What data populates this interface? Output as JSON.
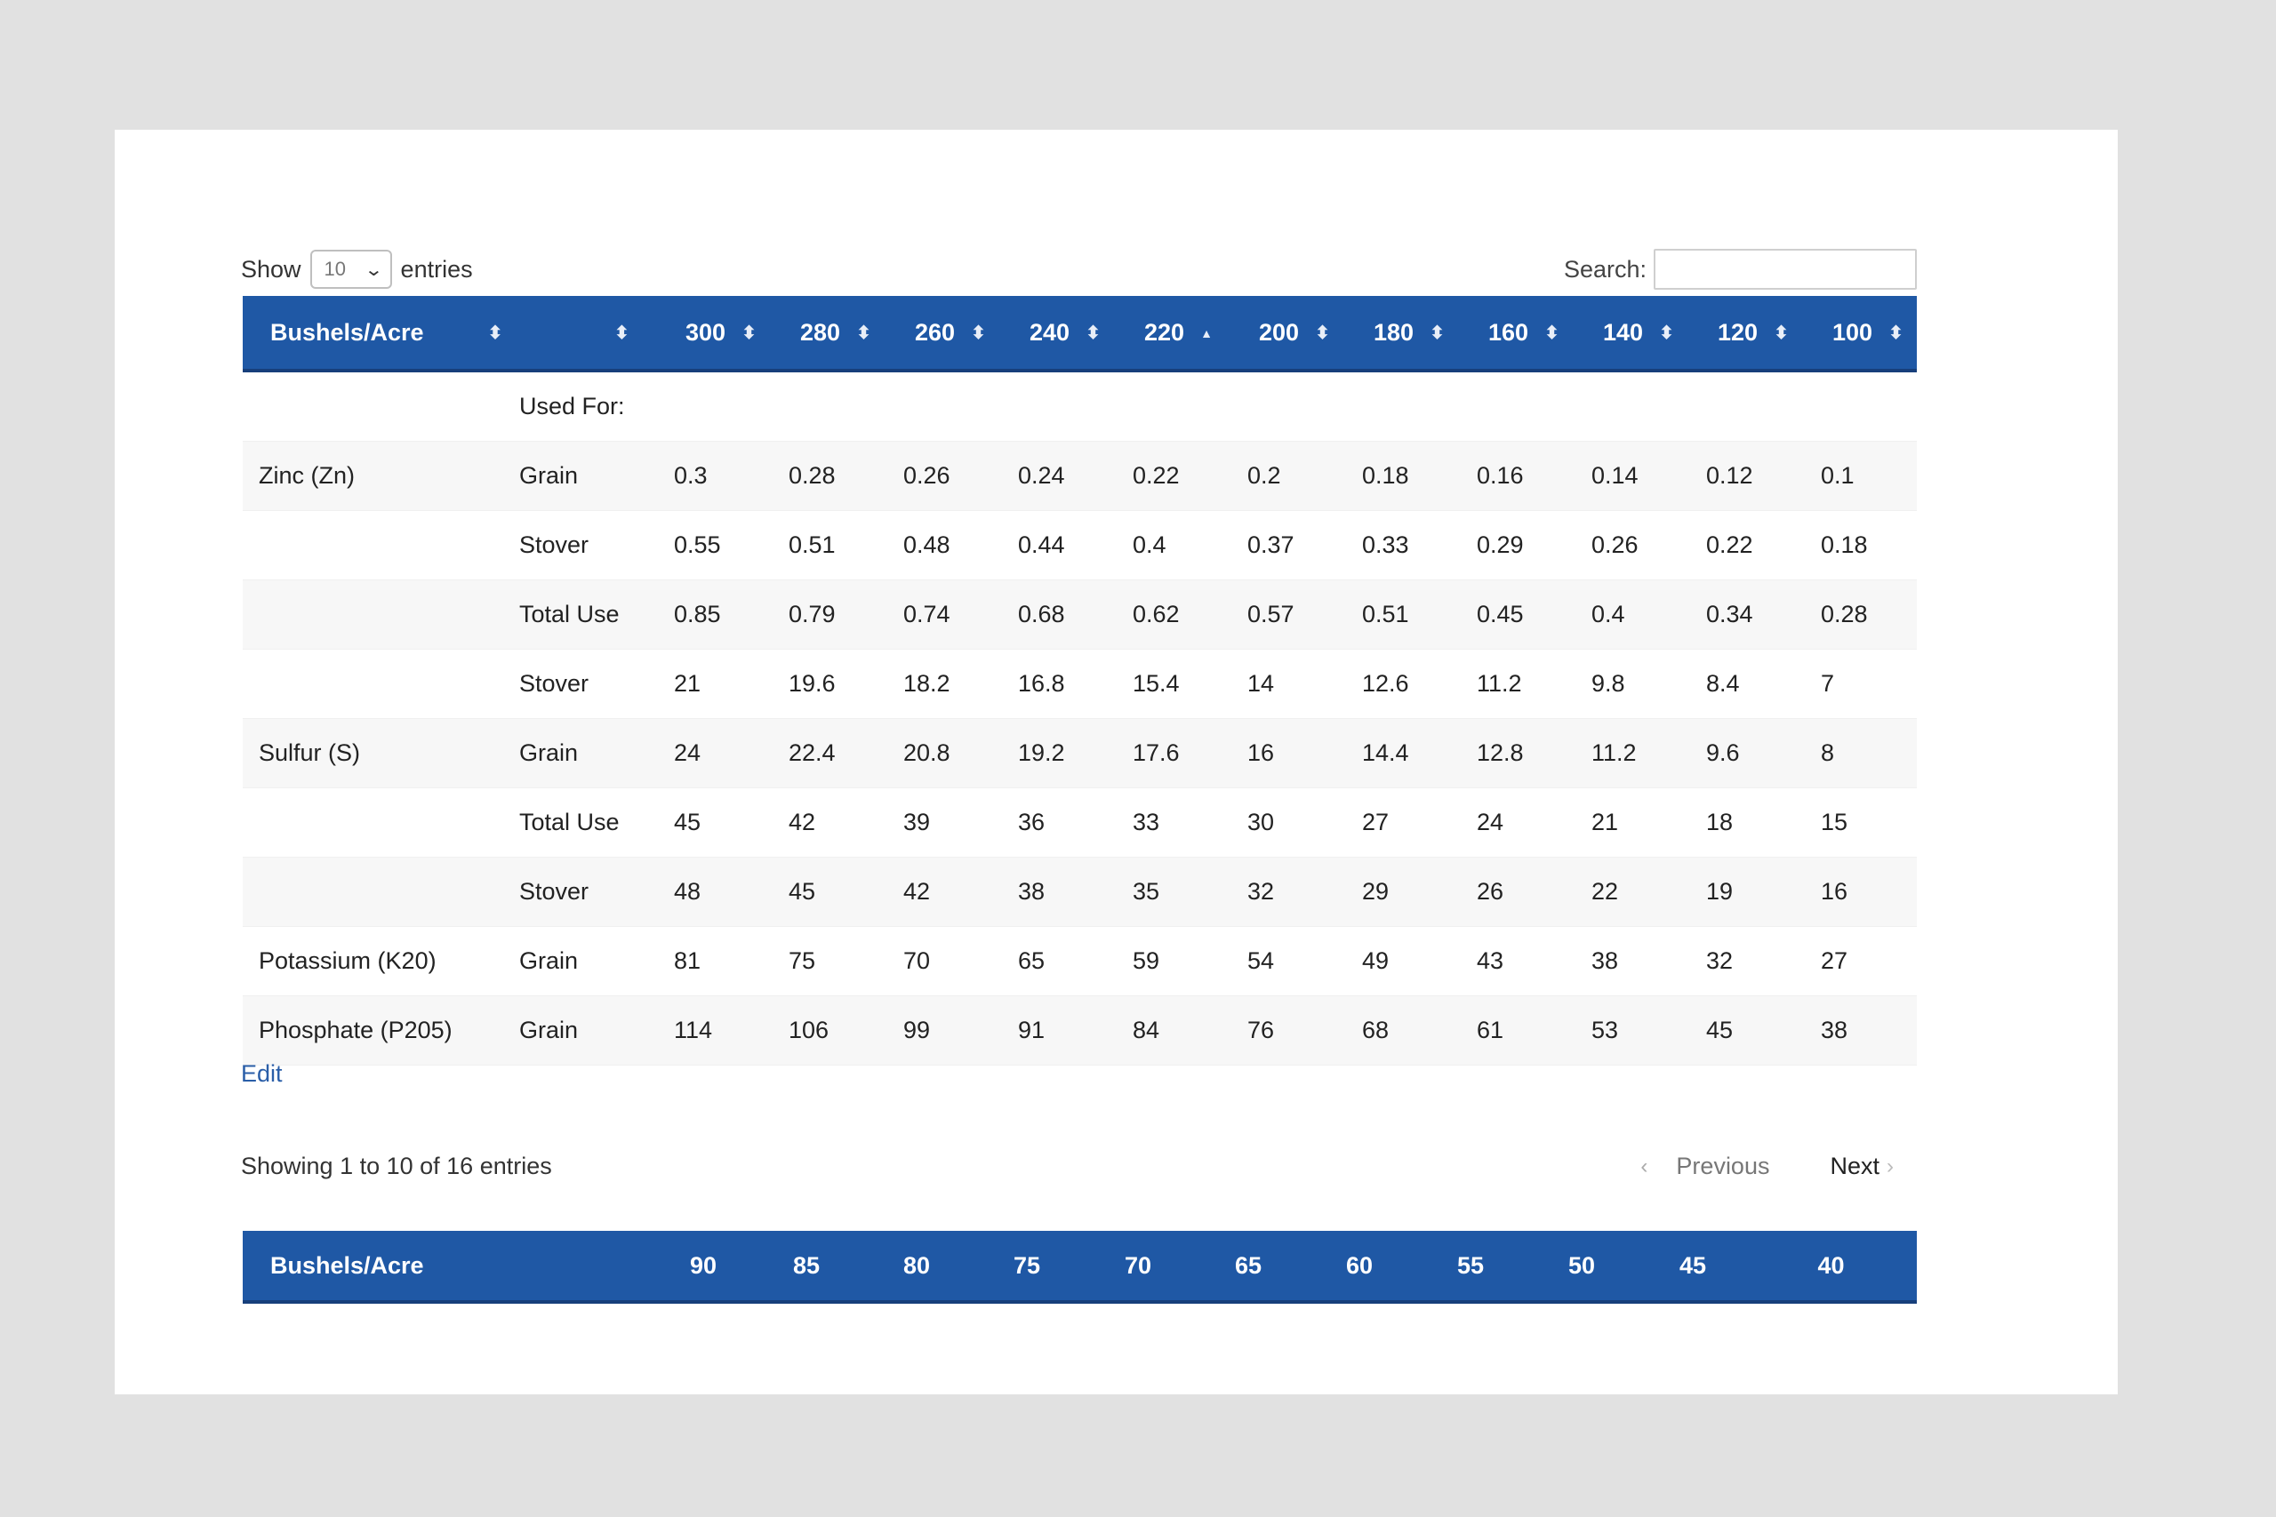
{
  "length_control": {
    "show_label": "Show",
    "selected": "10",
    "entries_label": "entries"
  },
  "search": {
    "label": "Search:",
    "value": "",
    "placeholder": ""
  },
  "colors": {
    "header_bg": "#1f58a5",
    "link": "#2a5ea8",
    "stripe": "#f7f7f7",
    "page_bg": "#e1e1e1"
  },
  "table1": {
    "headers": [
      "Bushels/Acre",
      "",
      "300",
      "280",
      "260",
      "240",
      "220",
      "200",
      "180",
      "160",
      "140",
      "120",
      "100"
    ],
    "sorted_column": "220",
    "rows": [
      {
        "nutrient": "",
        "used": "Used For:",
        "values": [
          "",
          "",
          "",
          "",
          "",
          "",
          "",
          "",
          "",
          "",
          ""
        ]
      },
      {
        "nutrient": "Zinc (Zn)",
        "used": "Grain",
        "values": [
          "0.3",
          "0.28",
          "0.26",
          "0.24",
          "0.22",
          "0.2",
          "0.18",
          "0.16",
          "0.14",
          "0.12",
          "0.1"
        ]
      },
      {
        "nutrient": "",
        "used": "Stover",
        "values": [
          "0.55",
          "0.51",
          "0.48",
          "0.44",
          "0.4",
          "0.37",
          "0.33",
          "0.29",
          "0.26",
          "0.22",
          "0.18"
        ]
      },
      {
        "nutrient": "",
        "used": "Total Use",
        "values": [
          "0.85",
          "0.79",
          "0.74",
          "0.68",
          "0.62",
          "0.57",
          "0.51",
          "0.45",
          "0.4",
          "0.34",
          "0.28"
        ]
      },
      {
        "nutrient": "",
        "used": "Stover",
        "values": [
          "21",
          "19.6",
          "18.2",
          "16.8",
          "15.4",
          "14",
          "12.6",
          "11.2",
          "9.8",
          "8.4",
          "7"
        ]
      },
      {
        "nutrient": "Sulfur (S)",
        "used": "Grain",
        "values": [
          "24",
          "22.4",
          "20.8",
          "19.2",
          "17.6",
          "16",
          "14.4",
          "12.8",
          "11.2",
          "9.6",
          "8"
        ]
      },
      {
        "nutrient": "",
        "used": "Total Use",
        "values": [
          "45",
          "42",
          "39",
          "36",
          "33",
          "30",
          "27",
          "24",
          "21",
          "18",
          "15"
        ]
      },
      {
        "nutrient": "",
        "used": "Stover",
        "values": [
          "48",
          "45",
          "42",
          "38",
          "35",
          "32",
          "29",
          "26",
          "22",
          "19",
          "16"
        ]
      },
      {
        "nutrient": "Potassium (K20)",
        "used": "Grain",
        "values": [
          "81",
          "75",
          "70",
          "65",
          "59",
          "54",
          "49",
          "43",
          "38",
          "32",
          "27"
        ]
      },
      {
        "nutrient": "Phosphate (P205)",
        "used": "Grain",
        "values": [
          "114",
          "106",
          "99",
          "91",
          "84",
          "76",
          "68",
          "61",
          "53",
          "45",
          "38"
        ]
      }
    ]
  },
  "edit_link": "Edit",
  "info": "Showing 1 to 10 of 16 entries",
  "pagination": {
    "previous": "Previous",
    "next": "Next"
  },
  "table2": {
    "headers": [
      "Bushels/Acre",
      "",
      "90",
      "85",
      "80",
      "75",
      "70",
      "65",
      "60",
      "55",
      "50",
      "45",
      "40"
    ]
  }
}
